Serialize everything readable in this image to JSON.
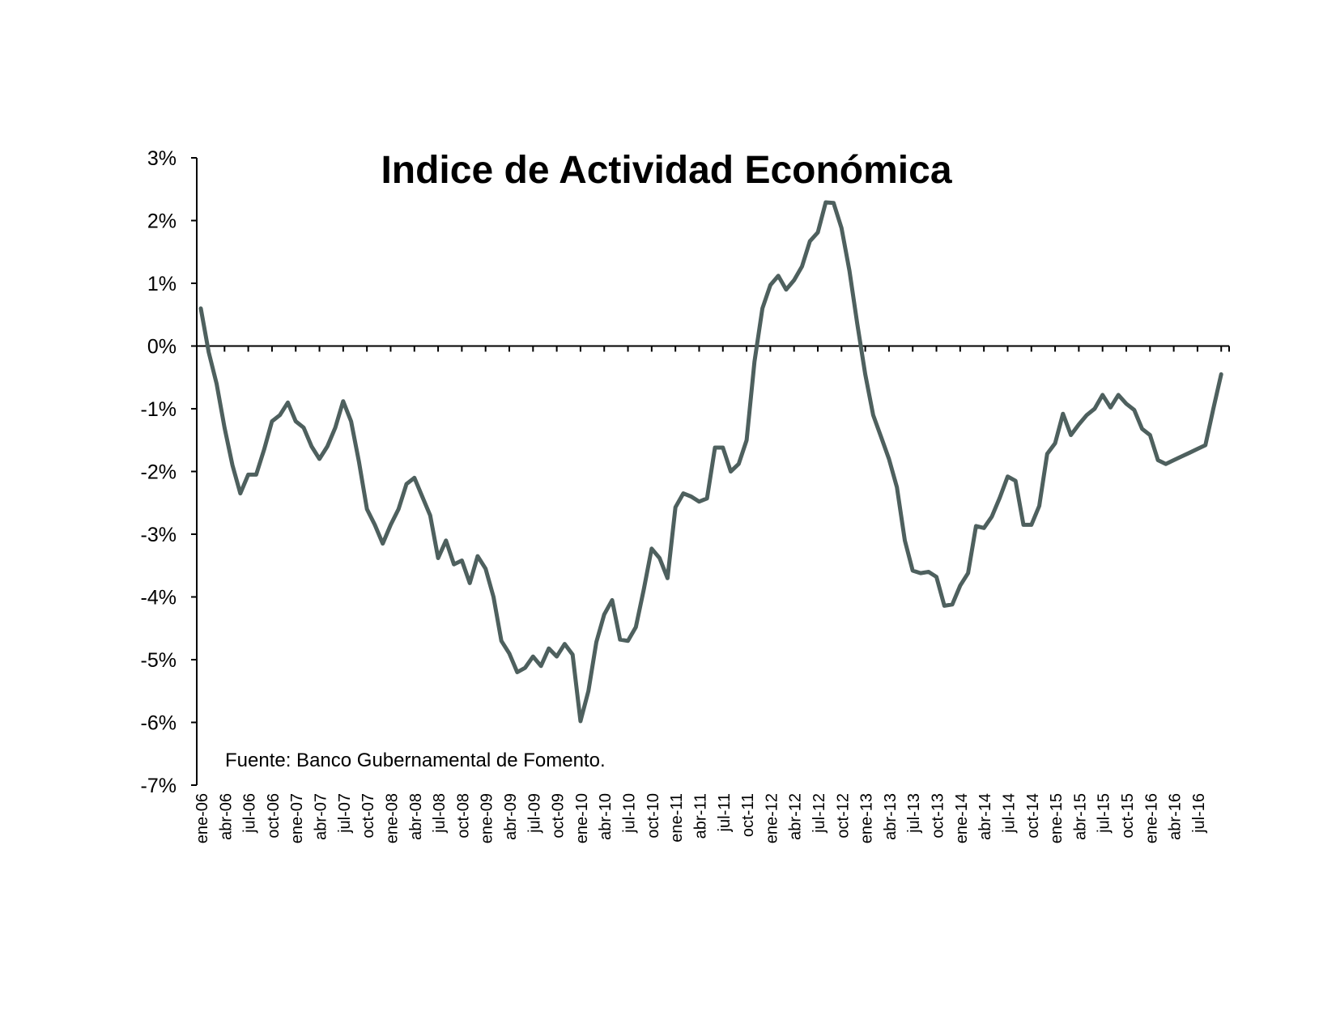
{
  "chart_data": {
    "type": "line",
    "title": "Indice de Actividad Económica",
    "note": "Fuente: Banco Gubernamental de Fomento.",
    "xlabel": "",
    "ylabel": "",
    "ylim": [
      -7,
      3
    ],
    "yticks": [
      3,
      2,
      1,
      0,
      -1,
      -2,
      -3,
      -4,
      -5,
      -6,
      -7
    ],
    "ytick_labels": [
      "3%",
      "2%",
      "1%",
      "0%",
      "-1%",
      "-2%",
      "-3%",
      "-4%",
      "-5%",
      "-6%",
      "-7%"
    ],
    "x_tick_labels": [
      "ene-06",
      "abr-06",
      "jul-06",
      "oct-06",
      "ene-07",
      "abr-07",
      "jul-07",
      "oct-07",
      "ene-08",
      "abr-08",
      "jul-08",
      "oct-08",
      "ene-09",
      "abr-09",
      "jul-09",
      "oct-09",
      "ene-10",
      "abr-10",
      "jul-10",
      "oct-10",
      "ene-11",
      "abr-11",
      "jul-11",
      "oct-11",
      "ene-12",
      "abr-12",
      "jul-12",
      "oct-12",
      "ene-13",
      "abr-13",
      "jul-13",
      "oct-13",
      "ene-14",
      "abr-14",
      "jul-14",
      "oct-14",
      "ene-15",
      "abr-15",
      "jul-15",
      "oct-15",
      "ene-16",
      "abr-16",
      "jul-16"
    ],
    "x_start": "ene-06",
    "x_end": "oct-16",
    "grid": false,
    "line_color": "#4e605e",
    "series": [
      {
        "name": "",
        "values": [
          0.6,
          -0.1,
          -0.6,
          -1.3,
          -1.9,
          -2.35,
          -2.05,
          -2.05,
          -1.65,
          -1.2,
          -1.1,
          -0.9,
          -1.2,
          -1.3,
          -1.6,
          -1.8,
          -1.6,
          -1.3,
          -0.88,
          -1.2,
          -1.85,
          -2.6,
          -2.85,
          -3.15,
          -2.85,
          -2.6,
          -2.2,
          -2.1,
          -2.4,
          -2.7,
          -3.38,
          -3.1,
          -3.48,
          -3.42,
          -3.78,
          -3.35,
          -3.55,
          -4.0,
          -4.7,
          -4.9,
          -5.2,
          -5.13,
          -4.95,
          -5.1,
          -4.82,
          -4.95,
          -4.75,
          -4.92,
          -5.98,
          -5.5,
          -4.72,
          -4.28,
          -4.05,
          -4.68,
          -4.7,
          -4.48,
          -3.88,
          -3.23,
          -3.38,
          -3.7,
          -2.57,
          -2.35,
          -2.4,
          -2.48,
          -2.43,
          -1.62,
          -1.62,
          -2.0,
          -1.88,
          -1.5,
          -0.25,
          0.6,
          0.97,
          1.12,
          0.9,
          1.05,
          1.27,
          1.67,
          1.81,
          2.29,
          2.28,
          1.88,
          1.2,
          0.35,
          -0.45,
          -1.1,
          -1.45,
          -1.8,
          -2.25,
          -3.1,
          -3.58,
          -3.62,
          -3.6,
          -3.68,
          -4.14,
          -4.12,
          -3.82,
          -3.62,
          -2.87,
          -2.9,
          -2.72,
          -2.42,
          -2.08,
          -2.15,
          -2.85,
          -2.85,
          -2.55,
          -1.72,
          -1.55,
          -1.08,
          -1.42,
          -1.25,
          -1.1,
          -1.0,
          -0.78,
          -0.98,
          -0.78,
          -0.92,
          -1.02,
          -1.32,
          -1.42,
          -1.82,
          -1.88,
          -1.82,
          -1.76,
          -1.7,
          -1.64,
          -1.58,
          -1.0,
          -0.45
        ]
      }
    ]
  }
}
